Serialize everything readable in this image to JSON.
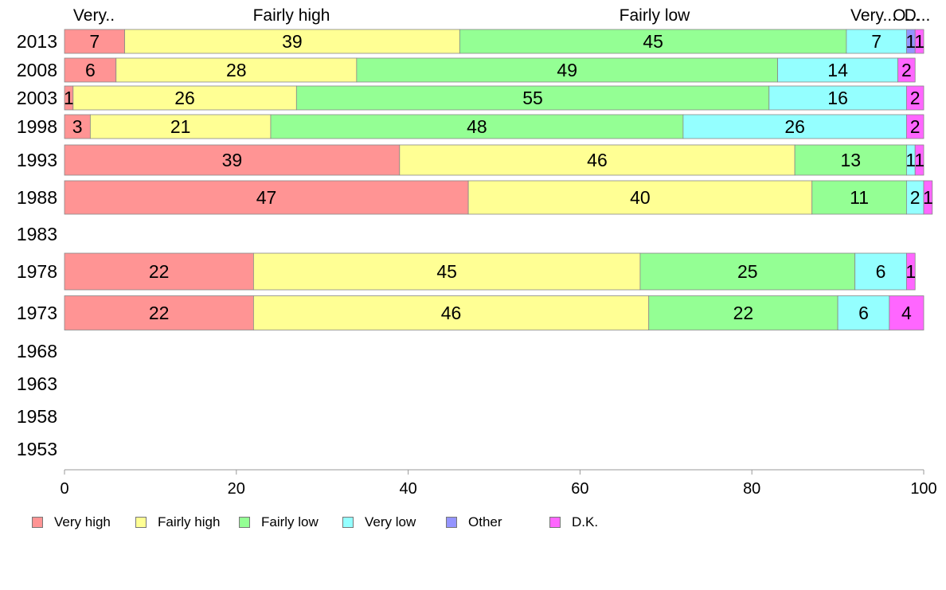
{
  "chart_data": {
    "type": "bar",
    "orientation": "horizontal",
    "stacked": true,
    "xlim": [
      0,
      100
    ],
    "x_ticks": [
      0,
      20,
      40,
      60,
      80,
      100
    ],
    "top_labels": [
      "Very..",
      "Fairly high",
      "Fairly low",
      "Very...",
      "O...",
      "D..."
    ],
    "categories": [
      "2013",
      "2008",
      "2003",
      "1998",
      "1993",
      "1988",
      "1983",
      "1978",
      "1973",
      "1968",
      "1963",
      "1958",
      "1953"
    ],
    "series": [
      {
        "name": "Very high",
        "color": "#ff9494",
        "values": [
          7,
          6,
          1,
          3,
          39,
          47,
          null,
          22,
          22,
          null,
          null,
          null,
          null
        ]
      },
      {
        "name": "Fairly high",
        "color": "#ffff94",
        "values": [
          39,
          28,
          26,
          21,
          46,
          40,
          null,
          45,
          46,
          null,
          null,
          null,
          null
        ]
      },
      {
        "name": "Fairly low",
        "color": "#94ff94",
        "values": [
          45,
          49,
          55,
          48,
          13,
          11,
          null,
          25,
          22,
          null,
          null,
          null,
          null
        ]
      },
      {
        "name": "Very low",
        "color": "#94ffff",
        "values": [
          7,
          14,
          16,
          26,
          1,
          2,
          null,
          6,
          6,
          null,
          null,
          null,
          null
        ]
      },
      {
        "name": "Other",
        "color": "#9494ff",
        "values": [
          1,
          0,
          0,
          0,
          0,
          0,
          null,
          0,
          0,
          null,
          null,
          null,
          null
        ]
      },
      {
        "name": "D.K.",
        "color": "#ff66ff",
        "values": [
          1,
          2,
          2,
          2,
          1,
          1,
          null,
          1,
          4,
          null,
          null,
          null,
          null
        ]
      }
    ],
    "legend_position": "bottom"
  }
}
